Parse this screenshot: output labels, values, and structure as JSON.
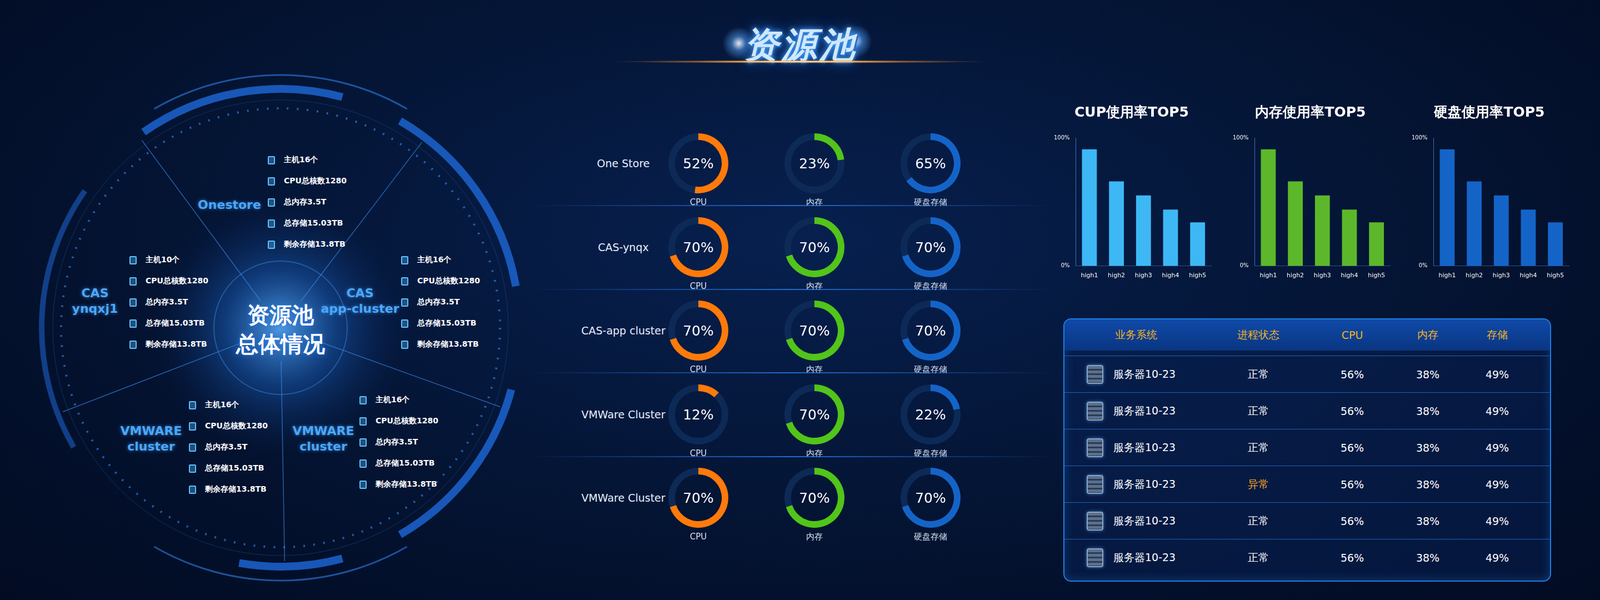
{
  "title": "资源池",
  "overview": {
    "center": [
      "资源池",
      "总体情况"
    ],
    "clusters": [
      {
        "name": [
          "Onestore"
        ],
        "items": [
          "主机16个",
          "CPU总核数1280",
          "总内存3.5T",
          "总存储15.03TB",
          "剩余存储13.8TB"
        ]
      },
      {
        "name": [
          "CAS",
          "ynqxj1"
        ],
        "items": [
          "主机10个",
          "CPU总核数1280",
          "总内存3.5T",
          "总存储15.03TB",
          "剩余存储13.8TB"
        ]
      },
      {
        "name": [
          "CAS",
          "app-cluster"
        ],
        "items": [
          "主机16个",
          "CPU总核数1280",
          "总内存3.5T",
          "总存储15.03TB",
          "剩余存储13.8TB"
        ]
      },
      {
        "name": [
          "VMWARE",
          "cluster"
        ],
        "items": [
          "主机16个",
          "CPU总核数1280",
          "总内存3.5T",
          "总存储15.03TB",
          "剩余存储13.8TB"
        ]
      },
      {
        "name": [
          "VMWARE",
          "cluster"
        ],
        "items": [
          "主机16个",
          "CPU总核数1280",
          "总内存3.5T",
          "总存储15.03TB",
          "剩余存储13.8TB"
        ]
      }
    ]
  },
  "gauges": {
    "type": "doughnut",
    "range": [
      0,
      100
    ],
    "metrics": [
      "CPU",
      "内存",
      "硬盘存储"
    ],
    "colors": [
      "#ff7a0a",
      "#52c41a",
      "#1464c8"
    ],
    "rows": [
      {
        "name": "One Store",
        "values": [
          52,
          23,
          65
        ],
        "value_labels": [
          "52%",
          "23%",
          "65%"
        ]
      },
      {
        "name": "CAS-ynqx",
        "values": [
          70,
          70,
          70
        ],
        "value_labels": [
          "70%",
          "70%",
          "70%"
        ]
      },
      {
        "name": "CAS-app cluster",
        "values": [
          70,
          70,
          70
        ],
        "value_labels": [
          "70%",
          "70%",
          "70%"
        ]
      },
      {
        "name": "VMWare Cluster",
        "values": [
          12,
          70,
          22
        ],
        "value_labels": [
          "12%",
          "70%",
          "22%"
        ]
      },
      {
        "name": "VMWare Cluster",
        "values": [
          70,
          70,
          70
        ],
        "value_labels": [
          "70%",
          "70%",
          "70%"
        ]
      }
    ]
  },
  "chart_data": [
    {
      "type": "bar",
      "title": "CUP使用率TOP5",
      "categories": [
        "high1",
        "high2",
        "high3",
        "high4",
        "high5"
      ],
      "values": [
        91,
        66,
        55,
        44,
        34
      ],
      "color": "#3db8f5",
      "ylim": [
        0,
        100
      ],
      "yticks": [
        {
          "value": 0,
          "label": "0%"
        },
        {
          "value": 100,
          "label": "100%"
        }
      ],
      "grid": false
    },
    {
      "type": "bar",
      "title": "内存使用率TOP5",
      "categories": [
        "high1",
        "high2",
        "high3",
        "high4",
        "high5"
      ],
      "values": [
        91,
        66,
        55,
        44,
        34
      ],
      "color": "#5cb82a",
      "ylim": [
        0,
        100
      ],
      "yticks": [
        {
          "value": 0,
          "label": "0%"
        },
        {
          "value": 100,
          "label": "100%"
        }
      ],
      "grid": false
    },
    {
      "type": "bar",
      "title": "硬盘使用率TOP5",
      "categories": [
        "high1",
        "high2",
        "high3",
        "high4",
        "high5"
      ],
      "values": [
        91,
        66,
        55,
        44,
        34
      ],
      "color": "#1464c8",
      "ylim": [
        0,
        100
      ],
      "yticks": [
        {
          "value": 0,
          "label": "0%"
        },
        {
          "value": 100,
          "label": "100%"
        }
      ],
      "grid": false
    }
  ],
  "table": {
    "header": [
      "业务系统",
      "进程状态",
      "CPU",
      "内存",
      "存储"
    ],
    "rows": [
      [
        "服务器10-23",
        "正常",
        "56%",
        "38%",
        "49%"
      ],
      [
        "服务器10-23",
        "正常",
        "56%",
        "38%",
        "49%"
      ],
      [
        "服务器10-23",
        "正常",
        "56%",
        "38%",
        "49%"
      ],
      [
        "服务器10-23",
        "异常",
        "56%",
        "38%",
        "49%"
      ],
      [
        "服务器10-23",
        "正常",
        "56%",
        "38%",
        "49%"
      ],
      [
        "服务器10-23",
        "正常",
        "56%",
        "38%",
        "49%"
      ]
    ]
  }
}
